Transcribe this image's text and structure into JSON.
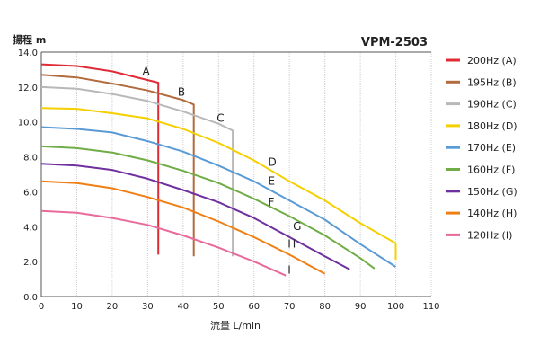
{
  "chart_data": {
    "type": "line",
    "title": "VPM-2503",
    "xlabel": "流量 L/min",
    "ylabel": "揚程 m",
    "xlim": [
      0,
      110
    ],
    "ylim": [
      0,
      14
    ],
    "x_ticks": [
      0,
      10,
      20,
      30,
      40,
      50,
      60,
      70,
      80,
      90,
      100,
      110
    ],
    "y_ticks": [
      "0.0",
      "2.0",
      "4.0",
      "6.0",
      "8.0",
      "10.0",
      "12.0",
      "14.0"
    ],
    "y_tick_values": [
      0,
      2,
      4,
      6,
      8,
      10,
      12,
      14
    ],
    "grid": "vertical",
    "legend_position": "right",
    "series": [
      {
        "key": "A",
        "name": "200Hz (A)",
        "color": "#e02b36",
        "points": [
          [
            0,
            13.3
          ],
          [
            10,
            13.2
          ],
          [
            20,
            12.9
          ],
          [
            30,
            12.4
          ],
          [
            33,
            12.25
          ]
        ],
        "drop_to": 2.4,
        "label_at": [
          28.5,
          12.7
        ]
      },
      {
        "key": "B",
        "name": "195Hz (B)",
        "color": "#b26b3c",
        "points": [
          [
            0,
            12.7
          ],
          [
            10,
            12.55
          ],
          [
            20,
            12.2
          ],
          [
            30,
            11.8
          ],
          [
            40,
            11.25
          ],
          [
            43,
            11.0
          ]
        ],
        "drop_to": 2.3,
        "label_at": [
          38.5,
          11.5
        ]
      },
      {
        "key": "C",
        "name": "190Hz (C)",
        "color": "#b8b8b8",
        "points": [
          [
            0,
            12.0
          ],
          [
            10,
            11.9
          ],
          [
            20,
            11.6
          ],
          [
            30,
            11.2
          ],
          [
            40,
            10.6
          ],
          [
            50,
            9.9
          ],
          [
            54,
            9.5
          ]
        ],
        "drop_to": 2.3,
        "label_at": [
          49.5,
          10.0
        ]
      },
      {
        "key": "D",
        "name": "180Hz (D)",
        "color": "#f5d000",
        "points": [
          [
            0,
            10.8
          ],
          [
            10,
            10.75
          ],
          [
            20,
            10.5
          ],
          [
            30,
            10.2
          ],
          [
            40,
            9.6
          ],
          [
            50,
            8.8
          ],
          [
            60,
            7.8
          ],
          [
            70,
            6.6
          ],
          [
            80,
            5.5
          ],
          [
            90,
            4.2
          ],
          [
            100,
            3.05
          ]
        ],
        "drop_to": 2.1,
        "label_at": [
          64,
          7.5
        ]
      },
      {
        "key": "E",
        "name": "170Hz (E)",
        "color": "#5b9bd5",
        "points": [
          [
            0,
            9.7
          ],
          [
            10,
            9.6
          ],
          [
            20,
            9.4
          ],
          [
            30,
            8.9
          ],
          [
            40,
            8.3
          ],
          [
            50,
            7.5
          ],
          [
            60,
            6.6
          ],
          [
            70,
            5.5
          ],
          [
            80,
            4.4
          ],
          [
            90,
            3.0
          ],
          [
            100,
            1.7
          ]
        ],
        "drop_to": null,
        "label_at": [
          64,
          6.4
        ]
      },
      {
        "key": "F",
        "name": "160Hz (F)",
        "color": "#70ad47",
        "points": [
          [
            0,
            8.6
          ],
          [
            10,
            8.5
          ],
          [
            20,
            8.25
          ],
          [
            30,
            7.8
          ],
          [
            40,
            7.2
          ],
          [
            50,
            6.5
          ],
          [
            60,
            5.6
          ],
          [
            70,
            4.6
          ],
          [
            80,
            3.5
          ],
          [
            90,
            2.2
          ],
          [
            94,
            1.6
          ]
        ],
        "drop_to": null,
        "label_at": [
          64,
          5.2
        ]
      },
      {
        "key": "G",
        "name": "150Hz (G)",
        "color": "#7030a0",
        "points": [
          [
            0,
            7.6
          ],
          [
            10,
            7.5
          ],
          [
            20,
            7.25
          ],
          [
            30,
            6.75
          ],
          [
            40,
            6.1
          ],
          [
            50,
            5.4
          ],
          [
            60,
            4.5
          ],
          [
            70,
            3.4
          ],
          [
            80,
            2.3
          ],
          [
            87,
            1.55
          ]
        ],
        "drop_to": null,
        "label_at": [
          71,
          3.8
        ]
      },
      {
        "key": "H",
        "name": "140Hz (H)",
        "color": "#f07f13",
        "points": [
          [
            0,
            6.6
          ],
          [
            10,
            6.5
          ],
          [
            20,
            6.2
          ],
          [
            30,
            5.7
          ],
          [
            40,
            5.1
          ],
          [
            50,
            4.3
          ],
          [
            60,
            3.4
          ],
          [
            70,
            2.4
          ],
          [
            80,
            1.3
          ]
        ],
        "drop_to": null,
        "label_at": [
          69.5,
          2.8
        ]
      },
      {
        "key": "I",
        "name": "120Hz (I)",
        "color": "#e86a9c",
        "points": [
          [
            0,
            4.9
          ],
          [
            10,
            4.8
          ],
          [
            20,
            4.5
          ],
          [
            30,
            4.1
          ],
          [
            40,
            3.5
          ],
          [
            50,
            2.8
          ],
          [
            60,
            2.0
          ],
          [
            69,
            1.2
          ]
        ],
        "drop_to": null,
        "label_at": [
          69.5,
          1.3
        ]
      }
    ]
  }
}
